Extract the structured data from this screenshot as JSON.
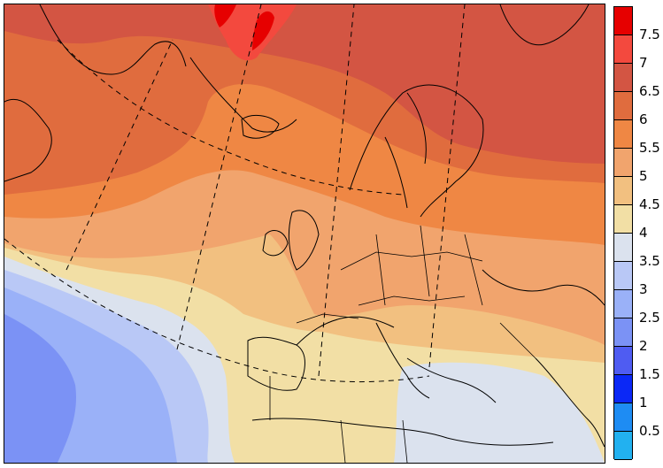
{
  "map": {
    "title": "",
    "colorbar": {
      "labels": [
        "7.5",
        "7",
        "6.5",
        "6",
        "5.5",
        "5",
        "4.5",
        "4",
        "3.5",
        "3",
        "2.5",
        "2",
        "1.5",
        "1",
        "0.5"
      ],
      "colors": [
        "#e60000",
        "#f3493e",
        "#d35543",
        "#e06c3e",
        "#ef8744",
        "#f1a46d",
        "#f2c080",
        "#f2dfa5",
        "#dbe2ee",
        "#b9c8f6",
        "#9ab1f8",
        "#7b92f5",
        "#4f5cf2",
        "#0b28f6",
        "#1e8cf3",
        "#22b1f0"
      ]
    },
    "layers": [
      "filled-contours",
      "coastlines",
      "country-borders",
      "graticule-dashed"
    ]
  }
}
